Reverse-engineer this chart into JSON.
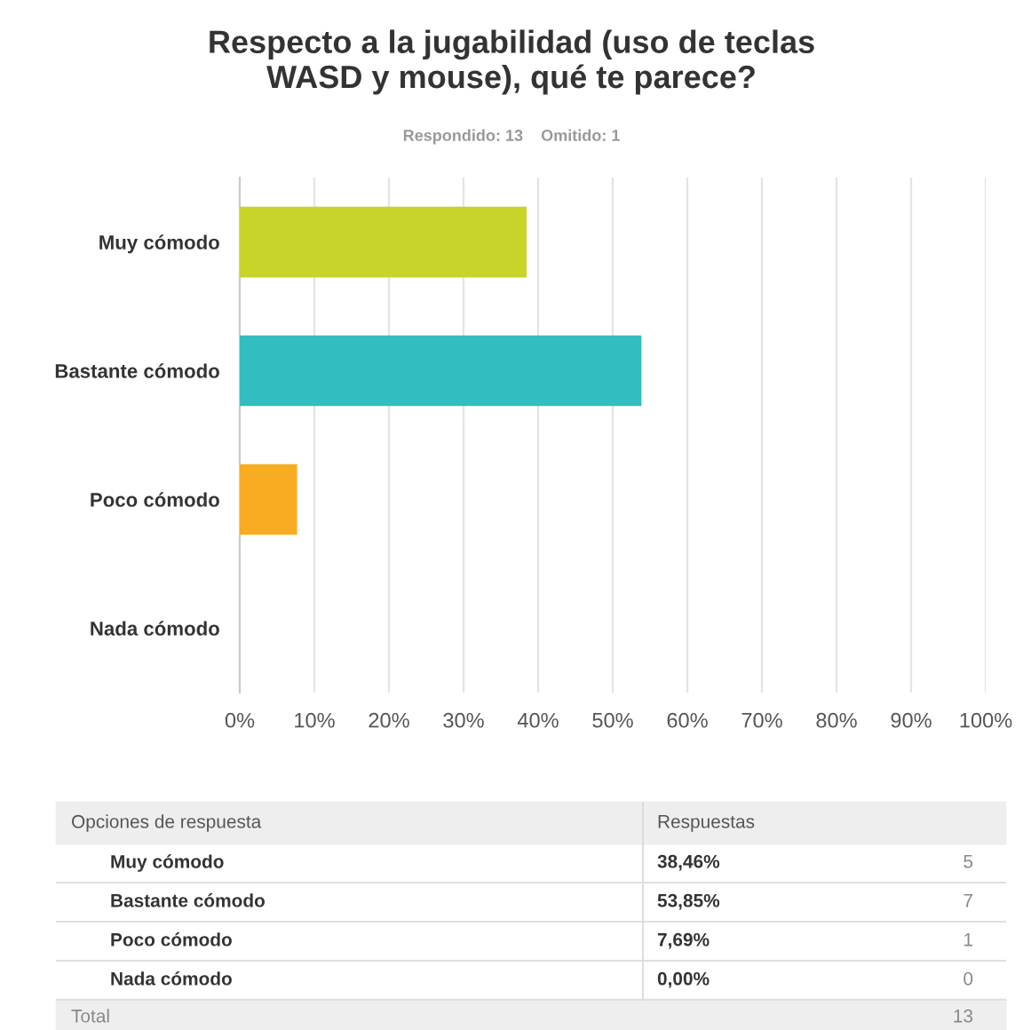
{
  "chart_data": {
    "type": "bar",
    "orientation": "horizontal",
    "title": "Respecto a la jugabilidad (uso de teclas\nWASD y mouse), qué te parece?",
    "subtitle": "Respondido: 13    Omitido: 1",
    "categories": [
      "Muy cómodo",
      "Bastante cómodo",
      "Poco cómodo",
      "Nada cómodo"
    ],
    "values": [
      38.46,
      53.85,
      7.69,
      0.0
    ],
    "colors": [
      "#c8d42a",
      "#32bec0",
      "#f7ac22",
      "#9b59b6"
    ],
    "xlim": [
      0,
      100
    ],
    "xticks": [
      {
        "value": 0,
        "label": "0%"
      },
      {
        "value": 10,
        "label": "10%"
      },
      {
        "value": 20,
        "label": "20%"
      },
      {
        "value": 30,
        "label": "30%"
      },
      {
        "value": 40,
        "label": "40%"
      },
      {
        "value": 50,
        "label": "50%"
      },
      {
        "value": 60,
        "label": "60%"
      },
      {
        "value": 70,
        "label": "70%"
      },
      {
        "value": 80,
        "label": "80%"
      },
      {
        "value": 90,
        "label": "90%"
      },
      {
        "value": 100,
        "label": "100%"
      }
    ],
    "grid": "x",
    "annotations": [
      "Opciones de respuesta",
      "Respuestas",
      "38,46%",
      "53,85%",
      "7,69%",
      "0,00%",
      "5",
      "7",
      "1",
      "0",
      "Total",
      "13"
    ]
  }
}
